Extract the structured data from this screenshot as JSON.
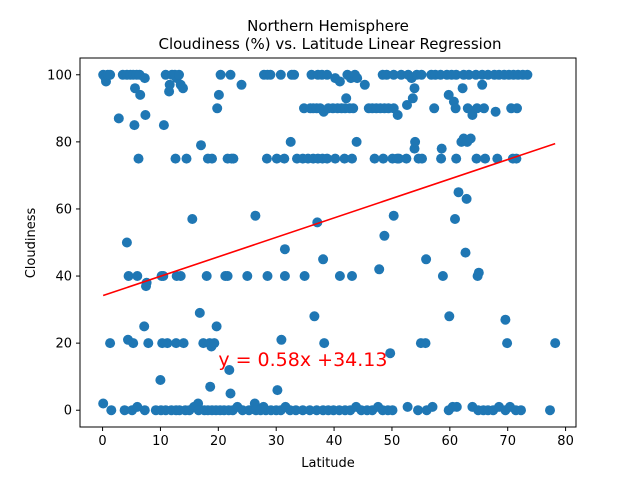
{
  "chart_data": {
    "type": "scatter",
    "title": "Northern Hemisphere",
    "subtitle": "Cloudiness (%) vs. Latitude Linear Regression",
    "xlabel": "Latitude",
    "ylabel": "Cloudiness",
    "xlim": [
      -3.9,
      81.8
    ],
    "ylim": [
      -5,
      105
    ],
    "xticks": [
      0,
      10,
      20,
      30,
      40,
      50,
      60,
      70,
      80
    ],
    "yticks": [
      0,
      20,
      40,
      60,
      80,
      100
    ],
    "grid": false,
    "colors": {
      "points": "#1f77b4",
      "regression": "#ff0000"
    },
    "regression": {
      "slope": 0.58,
      "intercept": 34.13,
      "x_range": [
        0.1,
        78.2
      ],
      "equation": "y = 0.58x +34.13",
      "equation_position": [
        20,
        15
      ]
    },
    "points": [
      [
        0.1,
        100
      ],
      [
        0.5,
        99
      ],
      [
        0.6,
        98
      ],
      [
        0.9,
        100
      ],
      [
        1.3,
        100
      ],
      [
        3.5,
        100
      ],
      [
        4.2,
        100
      ],
      [
        4.8,
        100
      ],
      [
        5.3,
        100
      ],
      [
        5.9,
        100
      ],
      [
        6.4,
        100
      ],
      [
        7.3,
        99
      ],
      [
        10.9,
        100
      ],
      [
        11.6,
        97
      ],
      [
        12.0,
        100
      ],
      [
        12.5,
        100
      ],
      [
        12.8,
        99
      ],
      [
        13.2,
        100
      ],
      [
        13.5,
        97
      ],
      [
        19.8,
        90
      ],
      [
        20.1,
        94
      ],
      [
        20.4,
        100
      ],
      [
        22.1,
        100
      ],
      [
        24.0,
        97
      ],
      [
        27.9,
        100
      ],
      [
        28.5,
        100
      ],
      [
        29.0,
        100
      ],
      [
        30.8,
        100
      ],
      [
        32.7,
        100
      ],
      [
        33.1,
        100
      ],
      [
        36.1,
        100
      ],
      [
        37.2,
        100
      ],
      [
        37.9,
        100
      ],
      [
        38.8,
        100
      ],
      [
        40.2,
        99
      ],
      [
        41.0,
        98
      ],
      [
        42.3,
        100
      ],
      [
        42.9,
        99
      ],
      [
        43.6,
        100
      ],
      [
        44.0,
        99
      ],
      [
        45.3,
        97
      ],
      [
        48.4,
        100
      ],
      [
        49.1,
        100
      ],
      [
        50.3,
        100
      ],
      [
        51.6,
        100
      ],
      [
        52.8,
        100
      ],
      [
        53.4,
        99
      ],
      [
        53.9,
        96
      ],
      [
        54.3,
        100
      ],
      [
        55.1,
        100
      ],
      [
        56.8,
        100
      ],
      [
        57.5,
        100
      ],
      [
        58.4,
        100
      ],
      [
        59.5,
        100
      ],
      [
        60.3,
        100
      ],
      [
        61.1,
        100
      ],
      [
        62.4,
        100
      ],
      [
        63.3,
        100
      ],
      [
        64.5,
        100
      ],
      [
        65.6,
        100
      ],
      [
        66.6,
        100
      ],
      [
        67.7,
        100
      ],
      [
        68.5,
        100
      ],
      [
        69.4,
        100
      ],
      [
        70.2,
        100
      ],
      [
        71.0,
        100
      ],
      [
        71.8,
        100
      ],
      [
        72.6,
        100
      ],
      [
        73.4,
        100
      ],
      [
        2.8,
        87
      ],
      [
        5.5,
        85
      ],
      [
        5.6,
        96
      ],
      [
        6.5,
        94
      ],
      [
        7.4,
        88
      ],
      [
        10.6,
        85
      ],
      [
        11.5,
        95
      ],
      [
        13.9,
        96
      ],
      [
        53.6,
        93
      ],
      [
        57.3,
        90
      ],
      [
        59.8,
        94
      ],
      [
        60.7,
        92
      ],
      [
        61.0,
        90
      ],
      [
        62.2,
        96
      ],
      [
        63.1,
        90
      ],
      [
        63.9,
        88
      ],
      [
        64.7,
        90
      ],
      [
        65.6,
        97
      ],
      [
        67.9,
        89
      ],
      [
        70.6,
        90
      ],
      [
        71.6,
        90
      ],
      [
        34.8,
        90
      ],
      [
        35.9,
        90
      ],
      [
        36.4,
        90
      ],
      [
        37.0,
        90
      ],
      [
        37.6,
        90
      ],
      [
        38.2,
        89
      ],
      [
        39.0,
        90
      ],
      [
        39.8,
        90
      ],
      [
        40.6,
        90
      ],
      [
        41.3,
        90
      ],
      [
        41.9,
        90
      ],
      [
        42.1,
        93
      ],
      [
        42.7,
        90
      ],
      [
        43.3,
        90
      ],
      [
        46.0,
        90
      ],
      [
        46.6,
        90
      ],
      [
        47.3,
        90
      ],
      [
        48.0,
        90
      ],
      [
        48.7,
        90
      ],
      [
        49.4,
        90
      ],
      [
        50.3,
        90
      ],
      [
        51.0,
        88
      ],
      [
        52.6,
        91
      ],
      [
        65.9,
        90
      ],
      [
        6.2,
        75
      ],
      [
        12.6,
        75
      ],
      [
        14.5,
        75
      ],
      [
        17.0,
        79
      ],
      [
        18.2,
        75
      ],
      [
        18.9,
        75
      ],
      [
        21.6,
        75
      ],
      [
        22.3,
        75
      ],
      [
        22.6,
        75
      ],
      [
        28.4,
        75
      ],
      [
        30.1,
        75
      ],
      [
        31.4,
        75
      ],
      [
        32.5,
        80
      ],
      [
        33.6,
        75
      ],
      [
        34.6,
        75
      ],
      [
        35.5,
        75
      ],
      [
        36.4,
        75
      ],
      [
        37.2,
        75
      ],
      [
        38.0,
        75
      ],
      [
        38.8,
        75
      ],
      [
        40.2,
        75
      ],
      [
        41.8,
        75
      ],
      [
        43.1,
        75
      ],
      [
        43.9,
        80
      ],
      [
        47.0,
        75
      ],
      [
        48.5,
        75
      ],
      [
        50.1,
        75
      ],
      [
        50.9,
        75
      ],
      [
        51.2,
        75
      ],
      [
        52.5,
        75
      ],
      [
        53.9,
        78
      ],
      [
        54.0,
        80
      ],
      [
        54.6,
        75
      ],
      [
        55.2,
        75
      ],
      [
        58.5,
        75
      ],
      [
        58.6,
        78
      ],
      [
        61.1,
        75
      ],
      [
        62.0,
        80
      ],
      [
        62.4,
        81
      ],
      [
        63.0,
        80
      ],
      [
        63.6,
        81
      ],
      [
        64.6,
        75
      ],
      [
        66.1,
        75
      ],
      [
        68.2,
        75
      ],
      [
        70.9,
        75
      ],
      [
        71.5,
        75
      ],
      [
        15.5,
        57
      ],
      [
        26.4,
        58
      ],
      [
        37.1,
        56
      ],
      [
        60.9,
        57
      ],
      [
        61.5,
        65
      ],
      [
        62.9,
        63
      ],
      [
        4.2,
        50
      ],
      [
        31.5,
        48
      ],
      [
        38.1,
        45
      ],
      [
        48.7,
        52
      ],
      [
        50.3,
        58
      ],
      [
        62.7,
        47
      ],
      [
        55.9,
        45
      ],
      [
        4.5,
        40
      ],
      [
        6.0,
        40
      ],
      [
        7.6,
        38
      ],
      [
        7.5,
        37
      ],
      [
        10.2,
        40
      ],
      [
        10.5,
        40
      ],
      [
        12.8,
        40
      ],
      [
        13.5,
        40
      ],
      [
        18.0,
        40
      ],
      [
        21.2,
        40
      ],
      [
        21.6,
        40
      ],
      [
        25.0,
        40
      ],
      [
        28.5,
        40
      ],
      [
        31.5,
        40
      ],
      [
        34.9,
        40
      ],
      [
        41.0,
        40
      ],
      [
        43.1,
        40
      ],
      [
        47.8,
        42
      ],
      [
        58.8,
        40
      ],
      [
        64.8,
        40
      ],
      [
        65.0,
        41
      ],
      [
        7.2,
        25
      ],
      [
        11.2,
        20
      ],
      [
        12.7,
        20
      ],
      [
        16.8,
        29
      ],
      [
        17.4,
        20
      ],
      [
        18.5,
        20
      ],
      [
        18.8,
        19
      ],
      [
        19.3,
        20
      ],
      [
        19.7,
        25
      ],
      [
        21.9,
        12
      ],
      [
        30.9,
        21
      ],
      [
        36.6,
        28
      ],
      [
        38.3,
        20
      ],
      [
        55.0,
        20
      ],
      [
        55.8,
        20
      ],
      [
        59.9,
        28
      ],
      [
        69.6,
        27
      ],
      [
        69.9,
        20
      ],
      [
        78.2,
        20
      ],
      [
        1.3,
        20
      ],
      [
        4.4,
        21
      ],
      [
        5.3,
        20
      ],
      [
        7.9,
        20
      ],
      [
        10.3,
        20
      ],
      [
        14.0,
        20
      ],
      [
        10.0,
        9
      ],
      [
        18.6,
        7
      ],
      [
        22.1,
        5
      ],
      [
        30.2,
        6
      ],
      [
        49.7,
        17
      ],
      [
        16.5,
        2
      ],
      [
        0.1,
        2
      ],
      [
        26.3,
        2
      ],
      [
        27.8,
        1
      ],
      [
        1.5,
        0
      ],
      [
        3.8,
        0
      ],
      [
        5.1,
        0
      ],
      [
        6.0,
        1
      ],
      [
        7.3,
        0
      ],
      [
        9.2,
        0
      ],
      [
        10.1,
        0
      ],
      [
        10.9,
        0
      ],
      [
        11.9,
        0
      ],
      [
        12.7,
        0
      ],
      [
        13.3,
        0
      ],
      [
        14.3,
        0
      ],
      [
        15.0,
        0
      ],
      [
        15.8,
        1
      ],
      [
        16.6,
        0
      ],
      [
        17.6,
        0
      ],
      [
        18.2,
        0
      ],
      [
        18.9,
        0
      ],
      [
        19.6,
        0
      ],
      [
        20.3,
        0
      ],
      [
        21.0,
        0
      ],
      [
        21.8,
        0
      ],
      [
        22.5,
        0
      ],
      [
        23.3,
        1
      ],
      [
        24.2,
        0
      ],
      [
        25.3,
        0
      ],
      [
        26.5,
        0
      ],
      [
        27.3,
        0
      ],
      [
        28.2,
        0
      ],
      [
        29.1,
        0
      ],
      [
        30.0,
        0
      ],
      [
        30.8,
        0
      ],
      [
        31.6,
        1
      ],
      [
        32.4,
        0
      ],
      [
        33.4,
        0
      ],
      [
        34.6,
        0
      ],
      [
        35.8,
        0
      ],
      [
        37.0,
        0
      ],
      [
        38.1,
        0
      ],
      [
        39.0,
        0
      ],
      [
        39.9,
        0
      ],
      [
        40.9,
        0
      ],
      [
        41.9,
        0
      ],
      [
        42.8,
        0
      ],
      [
        43.8,
        1
      ],
      [
        44.7,
        0
      ],
      [
        45.7,
        0
      ],
      [
        46.6,
        0
      ],
      [
        47.6,
        1
      ],
      [
        48.4,
        0
      ],
      [
        49.3,
        0
      ],
      [
        50.1,
        0
      ],
      [
        52.7,
        1
      ],
      [
        54.5,
        0
      ],
      [
        56.0,
        0
      ],
      [
        57.0,
        1
      ],
      [
        59.8,
        0
      ],
      [
        60.5,
        1
      ],
      [
        61.2,
        1
      ],
      [
        63.9,
        1
      ],
      [
        64.9,
        0
      ],
      [
        65.8,
        0
      ],
      [
        66.6,
        0
      ],
      [
        67.5,
        0
      ],
      [
        68.5,
        1
      ],
      [
        69.6,
        0
      ],
      [
        70.4,
        1
      ],
      [
        71.4,
        0
      ],
      [
        72.3,
        0
      ],
      [
        77.3,
        0
      ]
    ]
  }
}
